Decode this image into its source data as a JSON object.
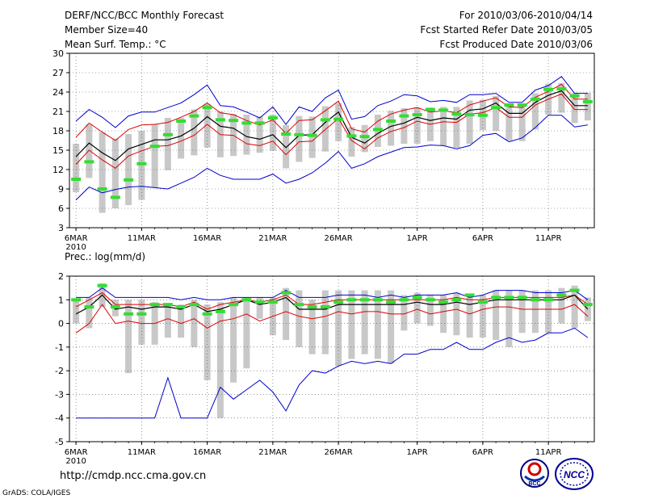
{
  "header": {
    "title": "DERF/NCC/BCC Monthly Forecast",
    "member": "Member Size=40",
    "variable": "Mean Surf. Temp.: °C",
    "period": "For 2010/03/06-2010/04/14",
    "started": "Fcst Started Refer Date 2010/03/05",
    "produced": "Fcst Produced Date 2010/03/06"
  },
  "footer": {
    "url": "http://cmdp.ncc.cma.gov.cn",
    "grads": "GrADS: COLA/IGES",
    "logo_bcc": "BCC",
    "logo_ncc": "NCC"
  },
  "colors": {
    "max": "#0000cc",
    "min": "#0000cc",
    "upper": "#dd0000",
    "lower": "#dd0000",
    "mean": "#000000",
    "bar": "#c8c8c8",
    "obs": "#33dd33",
    "grid": "#555555"
  },
  "chart_data": [
    {
      "type": "line",
      "title": "Mean Surf. Temp.: °C",
      "x_start": "2010-03-06",
      "days": 40,
      "xticks": [
        {
          "day": 0,
          "label": "6MAR"
        },
        {
          "day": 5,
          "label": "11MAR"
        },
        {
          "day": 10,
          "label": "16MAR"
        },
        {
          "day": 15,
          "label": "21MAR"
        },
        {
          "day": 20,
          "label": "26MAR"
        },
        {
          "day": 26,
          "label": "1APR"
        },
        {
          "day": 31,
          "label": "6APR"
        },
        {
          "day": 36,
          "label": "11APR"
        }
      ],
      "year_label": "2010",
      "ylim": [
        3,
        30
      ],
      "yticks": [
        3,
        6,
        9,
        12,
        15,
        18,
        21,
        24,
        27,
        30
      ],
      "series": [
        {
          "name": "max",
          "values": [
            19.5,
            21.3,
            20.1,
            18.5,
            20.3,
            20.9,
            20.9,
            21.6,
            22.3,
            23.6,
            25.1,
            21.9,
            21.7,
            20.9,
            20.0,
            21.7,
            19.0,
            21.7,
            21.0,
            23.1,
            24.3,
            19.8,
            20.2,
            21.9,
            22.6,
            23.6,
            23.4,
            22.5,
            22.7,
            22.4,
            23.6,
            23.6,
            23.8,
            22.4,
            22.4,
            24.3,
            25.0,
            26.4,
            23.8,
            23.8
          ]
        },
        {
          "name": "upper",
          "values": [
            17.0,
            19.2,
            17.8,
            16.5,
            18.2,
            18.9,
            19.0,
            19.3,
            20.1,
            21.0,
            22.3,
            20.8,
            20.5,
            19.6,
            18.9,
            19.7,
            17.6,
            19.6,
            19.7,
            21.1,
            22.6,
            18.3,
            17.8,
            19.5,
            20.6,
            21.2,
            21.6,
            20.9,
            21.1,
            20.8,
            22.0,
            22.6,
            23.1,
            21.7,
            21.6,
            23.2,
            24.1,
            25.2,
            22.9,
            22.9
          ]
        },
        {
          "name": "mean",
          "values": [
            14.0,
            16.1,
            14.6,
            13.4,
            15.2,
            15.9,
            16.6,
            16.6,
            17.2,
            18.4,
            20.2,
            18.7,
            18.4,
            17.1,
            16.7,
            17.4,
            15.4,
            17.3,
            17.4,
            19.3,
            20.9,
            17.0,
            16.1,
            17.6,
            18.7,
            19.2,
            20.1,
            19.6,
            20.0,
            19.8,
            21.2,
            21.4,
            22.3,
            20.7,
            20.7,
            22.4,
            23.5,
            24.2,
            21.9,
            21.9
          ]
        },
        {
          "name": "lower",
          "values": [
            12.8,
            15.0,
            13.5,
            12.2,
            14.1,
            14.9,
            15.6,
            15.7,
            16.4,
            17.3,
            19.0,
            17.4,
            17.3,
            16.0,
            15.7,
            16.4,
            14.3,
            16.3,
            16.4,
            18.2,
            19.9,
            16.5,
            15.2,
            16.9,
            17.9,
            18.5,
            19.5,
            19.0,
            19.4,
            19.3,
            20.6,
            20.8,
            21.6,
            20.1,
            20.1,
            22.0,
            22.9,
            23.7,
            21.3,
            21.3
          ]
        },
        {
          "name": "min",
          "values": [
            7.3,
            9.3,
            8.4,
            8.9,
            9.3,
            9.4,
            9.2,
            9.0,
            9.9,
            10.8,
            12.2,
            11.1,
            10.5,
            10.5,
            10.5,
            11.3,
            9.9,
            10.5,
            11.5,
            13.0,
            14.8,
            12.2,
            12.9,
            14.0,
            14.7,
            15.4,
            15.5,
            15.8,
            15.7,
            15.2,
            15.7,
            17.3,
            17.6,
            16.3,
            16.9,
            18.5,
            20.4,
            20.4,
            18.6,
            18.9
          ]
        },
        {
          "name": "observed",
          "values": [
            10.5,
            13.2,
            9.0,
            7.7,
            10.4,
            12.9,
            15.6,
            17.4,
            19.5,
            20.3,
            21.6,
            19.7,
            19.6,
            19.2,
            19.2,
            20.0,
            17.5,
            17.4,
            17.3,
            19.7,
            19.8,
            17.2,
            17.1,
            18.2,
            19.5,
            20.3,
            20.5,
            21.3,
            21.2,
            20.6,
            20.5,
            20.4,
            21.6,
            22.0,
            22.0,
            22.9,
            24.4,
            24.5,
            23.4,
            22.5
          ]
        },
        {
          "name": "spread_top",
          "values": [
            16.0,
            19.0,
            17.8,
            16.8,
            17.5,
            18.0,
            19.0,
            20.0,
            20.0,
            21.3,
            22.2,
            21.0,
            20.6,
            20.5,
            20.2,
            20.5,
            18.9,
            20.3,
            20.2,
            21.8,
            22.3,
            18.6,
            18.9,
            20.5,
            21.1,
            21.5,
            21.6,
            21.6,
            21.7,
            21.7,
            22.7,
            22.8,
            23.4,
            22.0,
            22.1,
            23.8,
            25.3,
            25.4,
            23.9,
            23.9
          ]
        },
        {
          "name": "spread_bottom",
          "values": [
            8.5,
            10.7,
            5.3,
            6.0,
            6.5,
            7.3,
            9.2,
            11.9,
            13.7,
            14.2,
            15.4,
            13.9,
            14.1,
            14.3,
            14.6,
            14.9,
            12.2,
            13.2,
            13.8,
            14.8,
            16.4,
            14.0,
            14.7,
            15.5,
            15.7,
            16.0,
            16.0,
            16.4,
            15.7,
            15.4,
            16.0,
            18.1,
            18.0,
            16.5,
            16.4,
            18.2,
            20.5,
            20.8,
            19.2,
            19.6
          ]
        }
      ]
    },
    {
      "type": "line",
      "title": "Prec.: log(mm/d)",
      "x_start": "2010-03-06",
      "days": 40,
      "xticks": [
        {
          "day": 0,
          "label": "6MAR"
        },
        {
          "day": 5,
          "label": "11MAR"
        },
        {
          "day": 10,
          "label": "16MAR"
        },
        {
          "day": 15,
          "label": "21MAR"
        },
        {
          "day": 20,
          "label": "26MAR"
        },
        {
          "day": 26,
          "label": "1APR"
        },
        {
          "day": 31,
          "label": "6APR"
        },
        {
          "day": 36,
          "label": "11APR"
        }
      ],
      "year_label": "2010",
      "ylim": [
        -5,
        2
      ],
      "yticks": [
        -5,
        -4,
        -3,
        -2,
        -1,
        0,
        1,
        2
      ],
      "series": [
        {
          "name": "max",
          "values": [
            1.1,
            1.1,
            1.5,
            1.1,
            1.1,
            1.1,
            1.1,
            1.1,
            1.0,
            1.1,
            1.0,
            1.0,
            1.1,
            1.1,
            1.1,
            1.1,
            1.4,
            1.1,
            1.1,
            1.1,
            1.2,
            1.2,
            1.2,
            1.1,
            1.2,
            1.1,
            1.2,
            1.2,
            1.2,
            1.3,
            1.1,
            1.2,
            1.4,
            1.4,
            1.4,
            1.3,
            1.3,
            1.3,
            1.4,
            1.0
          ]
        },
        {
          "name": "upper",
          "values": [
            0.7,
            1.0,
            1.3,
            0.8,
            0.8,
            0.8,
            0.8,
            0.8,
            0.7,
            0.9,
            0.6,
            0.8,
            0.9,
            1.0,
            0.9,
            1.0,
            1.2,
            0.8,
            0.8,
            0.9,
            1.0,
            1.0,
            1.0,
            1.0,
            1.0,
            1.0,
            1.0,
            1.0,
            1.0,
            1.1,
            1.0,
            1.0,
            1.1,
            1.1,
            1.1,
            1.1,
            1.1,
            1.1,
            1.2,
            0.8
          ]
        },
        {
          "name": "mean",
          "values": [
            0.4,
            0.7,
            1.2,
            0.6,
            0.7,
            0.6,
            0.7,
            0.7,
            0.6,
            0.8,
            0.5,
            0.6,
            0.8,
            1.0,
            0.8,
            0.9,
            1.1,
            0.6,
            0.6,
            0.6,
            0.8,
            0.8,
            0.8,
            0.8,
            0.8,
            0.8,
            0.9,
            0.8,
            0.8,
            0.9,
            0.8,
            0.9,
            1.0,
            1.0,
            1.0,
            1.0,
            1.0,
            1.0,
            1.2,
            0.6
          ]
        },
        {
          "name": "lower",
          "values": [
            -0.4,
            0.0,
            0.8,
            0.0,
            0.1,
            0.0,
            0.0,
            0.2,
            0.0,
            0.2,
            -0.2,
            0.1,
            0.2,
            0.4,
            0.1,
            0.3,
            0.5,
            0.3,
            0.2,
            0.3,
            0.5,
            0.4,
            0.5,
            0.5,
            0.4,
            0.4,
            0.6,
            0.4,
            0.5,
            0.6,
            0.4,
            0.6,
            0.7,
            0.7,
            0.6,
            0.6,
            0.6,
            0.6,
            0.8,
            0.3
          ]
        },
        {
          "name": "min",
          "values": [
            -4.0,
            -4.0,
            -4.0,
            -4.0,
            -4.0,
            -4.0,
            -4.0,
            -2.3,
            -4.0,
            -4.0,
            -4.0,
            -2.7,
            -3.2,
            -2.8,
            -2.4,
            -2.9,
            -3.7,
            -2.6,
            -2.0,
            -2.1,
            -1.8,
            -1.6,
            -1.7,
            -1.6,
            -1.7,
            -1.3,
            -1.3,
            -1.1,
            -1.1,
            -0.8,
            -1.1,
            -1.1,
            -0.8,
            -0.6,
            -0.8,
            -0.7,
            -0.4,
            -0.4,
            -0.2,
            -0.6
          ]
        },
        {
          "name": "observed",
          "values": [
            1.0,
            0.7,
            1.6,
            0.7,
            0.4,
            0.4,
            0.8,
            0.8,
            0.7,
            0.8,
            0.4,
            0.5,
            0.8,
            1.0,
            0.9,
            0.9,
            1.3,
            0.8,
            0.7,
            0.7,
            0.9,
            1.0,
            1.0,
            1.0,
            0.9,
            1.0,
            1.1,
            1.0,
            0.9,
            1.0,
            1.2,
            0.9,
            1.1,
            1.1,
            1.1,
            1.0,
            1.0,
            1.2,
            1.4,
            0.8
          ]
        },
        {
          "name": "spread_top",
          "values": [
            1.0,
            1.1,
            1.7,
            1.0,
            1.0,
            1.0,
            0.9,
            0.8,
            0.8,
            1.0,
            0.8,
            0.9,
            1.1,
            1.1,
            1.1,
            1.1,
            1.5,
            1.4,
            1.0,
            1.4,
            1.4,
            1.4,
            1.4,
            1.4,
            1.4,
            1.2,
            1.3,
            1.2,
            1.2,
            1.3,
            1.2,
            1.2,
            1.4,
            1.4,
            1.4,
            1.4,
            1.4,
            1.5,
            1.6,
            1.1
          ]
        },
        {
          "name": "spread_bottom",
          "values": [
            0.0,
            -0.2,
            0.7,
            0.3,
            -2.1,
            -0.9,
            -0.9,
            -0.6,
            -0.6,
            -1.0,
            -2.4,
            -4.0,
            -2.5,
            -1.9,
            0.2,
            -0.5,
            -0.7,
            -1.0,
            -1.3,
            -1.3,
            -1.8,
            -1.5,
            -1.3,
            -1.5,
            -1.7,
            -0.3,
            0.0,
            -0.1,
            -0.4,
            -0.5,
            -0.6,
            -0.6,
            -0.7,
            -1.0,
            -0.4,
            -0.4,
            -0.4,
            0.0,
            -0.2,
            0.1
          ]
        }
      ]
    }
  ]
}
